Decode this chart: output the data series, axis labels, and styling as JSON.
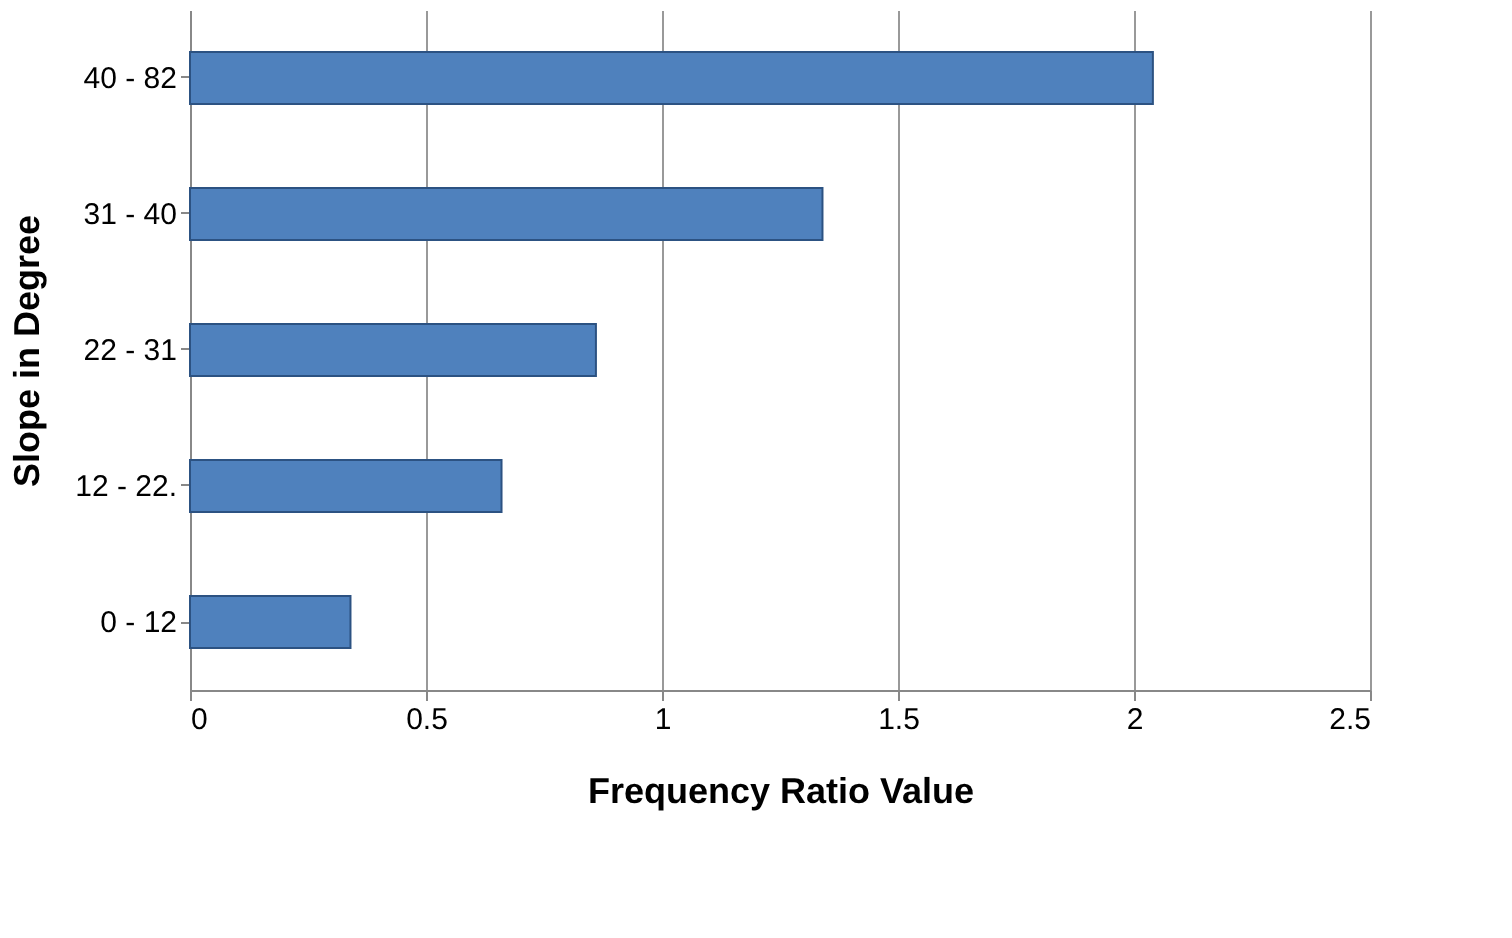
{
  "chart_data": {
    "type": "bar",
    "orientation": "horizontal",
    "xlabel": "Frequency Ratio Value",
    "ylabel": "Slope in Degree",
    "categories": [
      "40 - 82",
      "31 - 40",
      "22 - 31",
      "12 - 22.",
      "0 - 12"
    ],
    "values": [
      2.04,
      1.34,
      0.86,
      0.66,
      0.34
    ],
    "color": "#4f81bd",
    "xlim": [
      0,
      2.5
    ],
    "xticks": [
      0,
      0.5,
      1,
      1.5,
      2,
      2.5
    ],
    "grid": "x"
  }
}
